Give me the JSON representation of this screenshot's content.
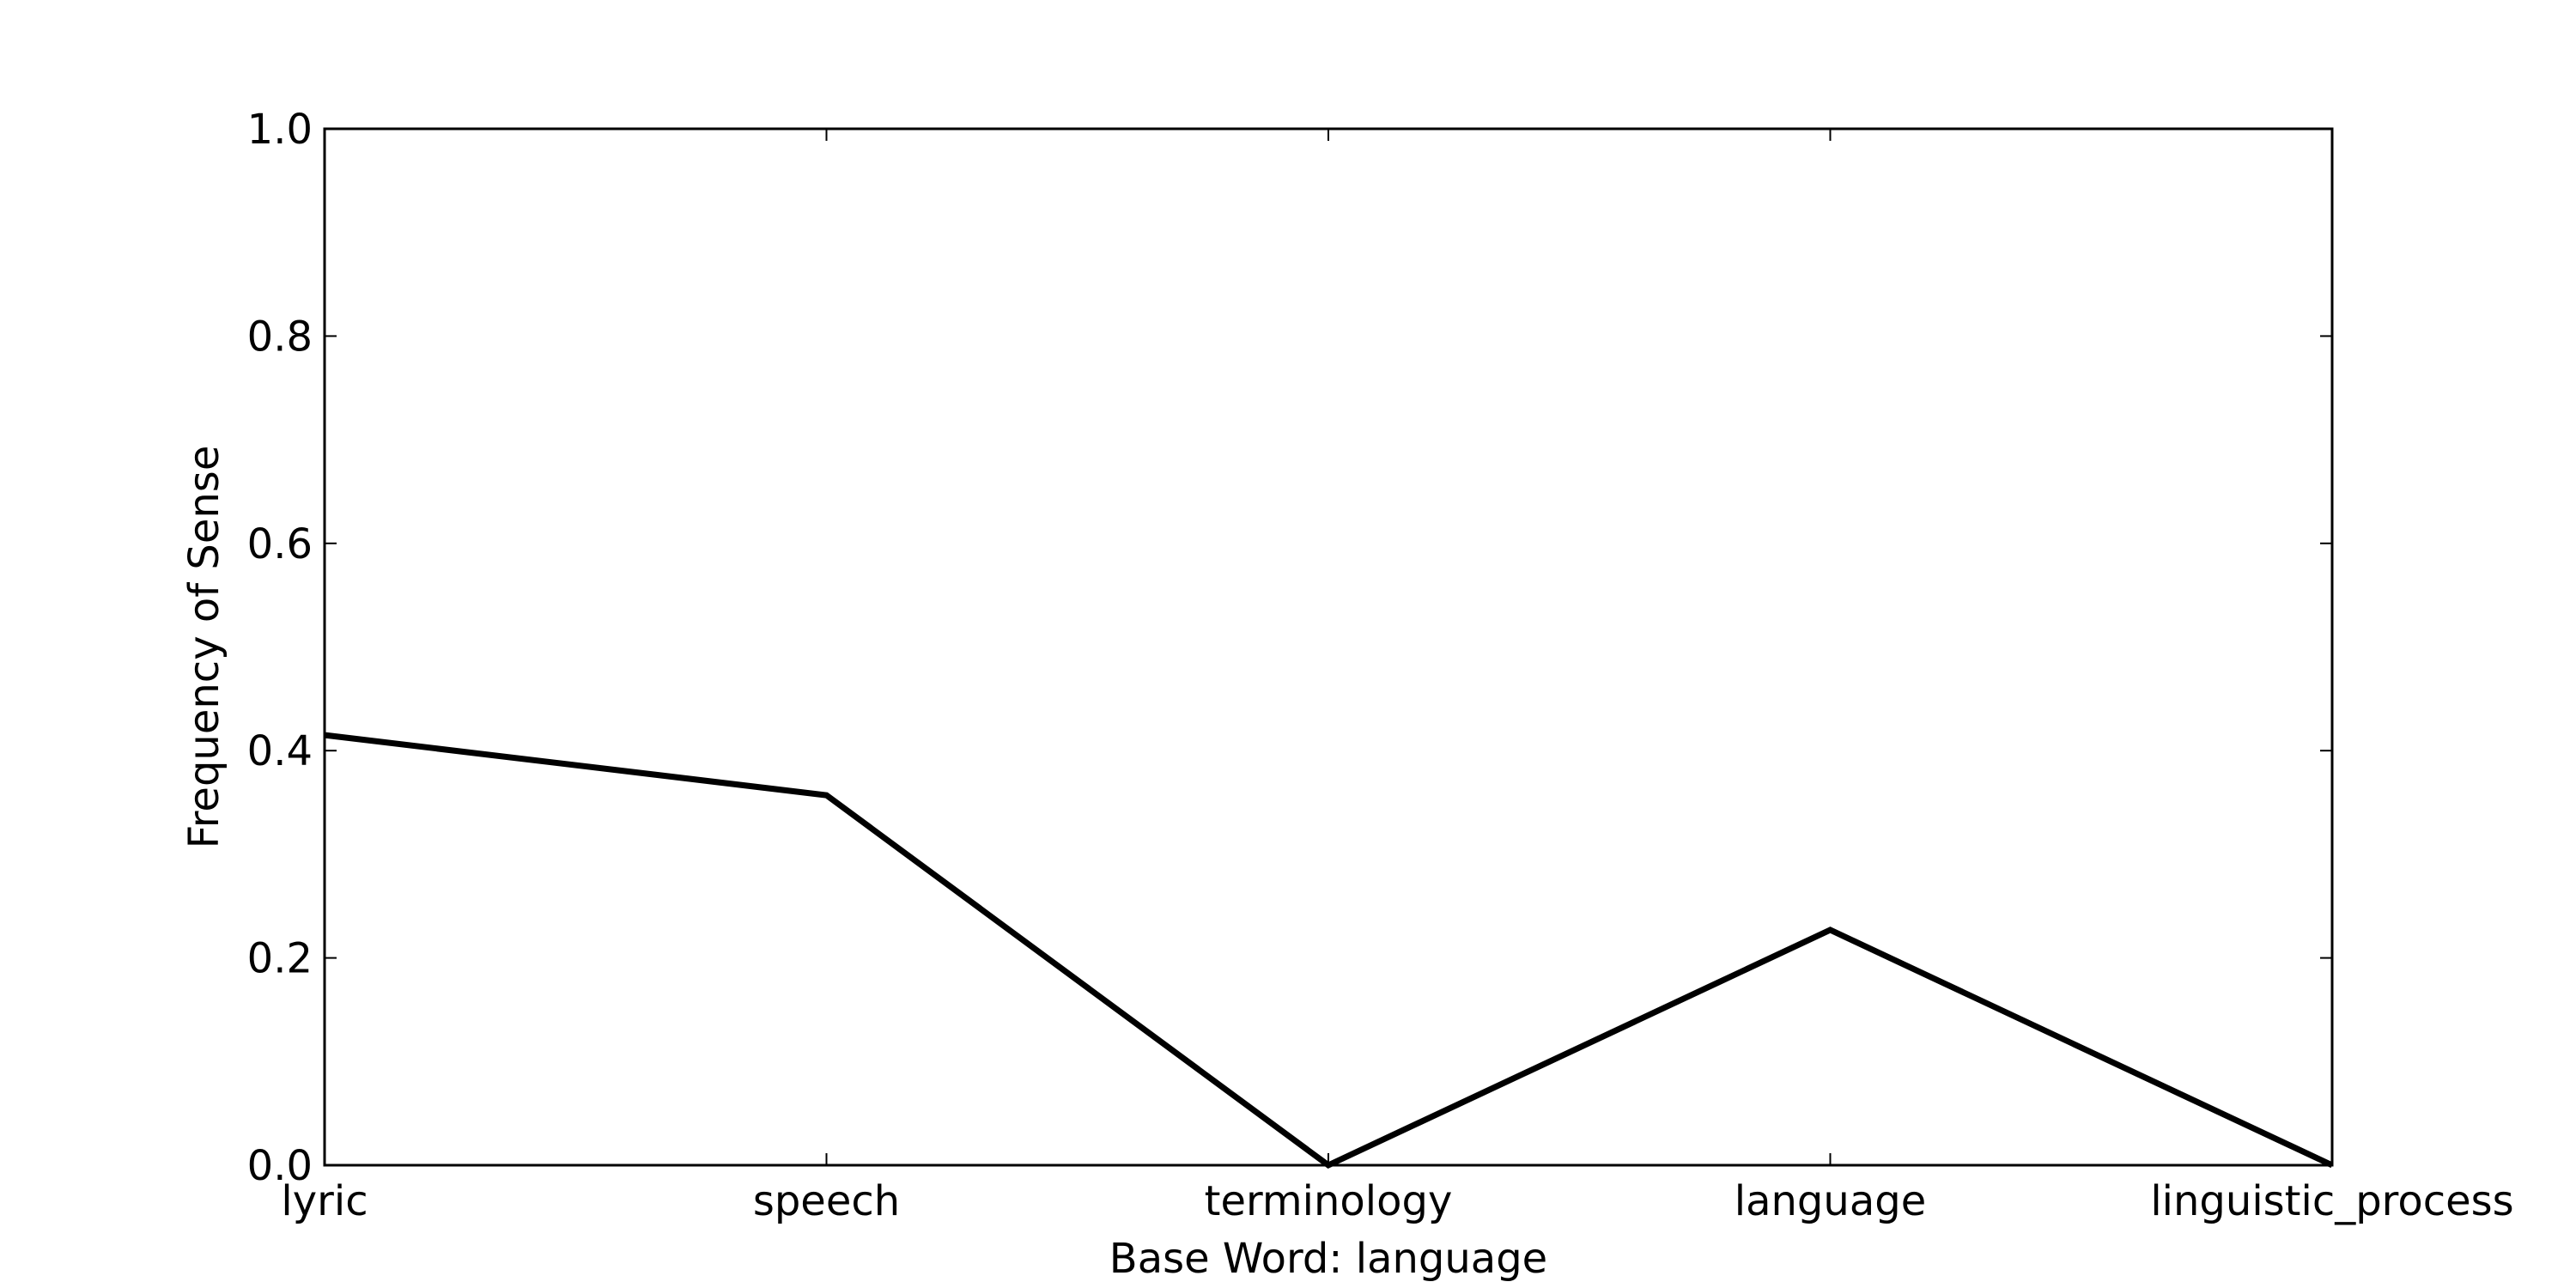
{
  "chart_data": {
    "type": "line",
    "title": "",
    "xlabel": "Base Word: language",
    "ylabel": "Frequency of Sense",
    "categories": [
      "lyric",
      "speech",
      "terminology",
      "language",
      "linguistic_process"
    ],
    "series": [
      {
        "values": [
          0.415,
          0.357,
          0.0,
          0.227,
          0.0
        ],
        "color": "#000000"
      }
    ],
    "ylim": [
      0,
      1.0
    ],
    "yticks": [
      "0.0",
      "0.2",
      "0.4",
      "0.6",
      "0.8",
      "1.0"
    ],
    "grid": false,
    "legend": false
  }
}
